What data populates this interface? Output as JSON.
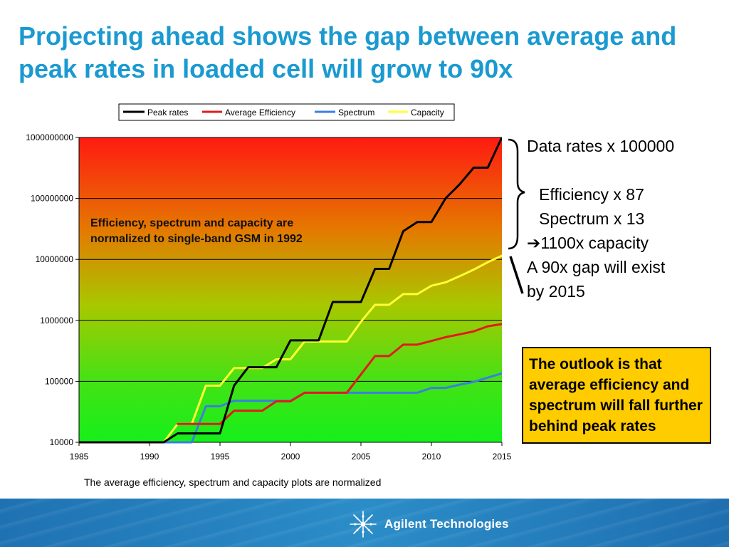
{
  "slide": {
    "title": "Projecting ahead shows the gap between average and peak rates in loaded cell will grow to 90x"
  },
  "side_notes": {
    "data_rates": "Data rates x 100000",
    "efficiency": "Efficiency x 87",
    "spectrum": "Spectrum x 13",
    "capacity": "1100x capacity",
    "gap_line1": "A 90x gap will exist",
    "gap_line2": "by 2015"
  },
  "outlook_box": {
    "text": "The outlook is that average efficiency and spectrum will fall further behind peak rates"
  },
  "footer": {
    "brand": "Agilent Technologies"
  },
  "colors": {
    "title": "#1a9ad0",
    "peak": "#000000",
    "average_efficiency": "#e31a1c",
    "spectrum": "#3a7fe0",
    "capacity": "#ffff33",
    "outlook_box": "#ffcc00",
    "footer": "#2580c0"
  },
  "chart_data": {
    "type": "line",
    "title": "",
    "xlabel": "",
    "ylabel": "",
    "y_scale": "log",
    "xlim": [
      1985,
      2015
    ],
    "ylim": [
      10000,
      1000000000
    ],
    "x_ticks": [
      1985,
      1990,
      1995,
      2000,
      2005,
      2010,
      2015
    ],
    "y_ticks": [
      10000,
      100000,
      1000000,
      10000000,
      100000000,
      1000000000
    ],
    "y_tick_labels": [
      "10000",
      "100000",
      "1000000",
      "10000000",
      "100000000",
      "1000000000"
    ],
    "grid": "horizontal",
    "legend_position": "top",
    "background": "vertical gradient from red at top to green at bottom",
    "annotation": "Efficiency, spectrum and capacity are normalized to single-band GSM in 1992",
    "caption": "The average efficiency, spectrum and capacity plots are normalized",
    "series": [
      {
        "name": "Peak rates",
        "color": "#000000",
        "points": [
          [
            1985,
            10000
          ],
          [
            1991,
            10000
          ],
          [
            1992,
            14000
          ],
          [
            1994,
            14000
          ],
          [
            1995,
            14000
          ],
          [
            1996,
            85000
          ],
          [
            1997,
            170000
          ],
          [
            1998,
            170000
          ],
          [
            1999,
            170000
          ],
          [
            2000,
            470000
          ],
          [
            2001,
            470000
          ],
          [
            2002,
            470000
          ],
          [
            2003,
            2000000
          ],
          [
            2004,
            2000000
          ],
          [
            2005,
            2000000
          ],
          [
            2006,
            7000000
          ],
          [
            2007,
            7000000
          ],
          [
            2008,
            29000000
          ],
          [
            2009,
            41000000
          ],
          [
            2010,
            41000000
          ],
          [
            2011,
            100000000
          ],
          [
            2012,
            170000000
          ],
          [
            2013,
            320000000
          ],
          [
            2014,
            320000000
          ],
          [
            2015,
            1000000000
          ]
        ]
      },
      {
        "name": "Average Efficiency",
        "color": "#e31a1c",
        "points": [
          [
            1992,
            20000
          ],
          [
            1993,
            20000
          ],
          [
            1994,
            20000
          ],
          [
            1995,
            20000
          ],
          [
            1996,
            33000
          ],
          [
            1997,
            33000
          ],
          [
            1998,
            33000
          ],
          [
            1999,
            47000
          ],
          [
            2000,
            47000
          ],
          [
            2001,
            65000
          ],
          [
            2002,
            65000
          ],
          [
            2003,
            65000
          ],
          [
            2004,
            65000
          ],
          [
            2005,
            130000
          ],
          [
            2006,
            260000
          ],
          [
            2007,
            260000
          ],
          [
            2008,
            400000
          ],
          [
            2009,
            400000
          ],
          [
            2010,
            460000
          ],
          [
            2011,
            530000
          ],
          [
            2012,
            590000
          ],
          [
            2013,
            660000
          ],
          [
            2014,
            800000
          ],
          [
            2015,
            870000
          ]
        ]
      },
      {
        "name": "Spectrum",
        "color": "#3a7fe0",
        "points": [
          [
            1985,
            10000
          ],
          [
            1991,
            10000
          ],
          [
            1993,
            10000
          ],
          [
            1994,
            39000
          ],
          [
            1995,
            39000
          ],
          [
            1996,
            48000
          ],
          [
            1997,
            48000
          ],
          [
            1998,
            48000
          ],
          [
            1999,
            48000
          ],
          [
            2000,
            48000
          ],
          [
            2001,
            65000
          ],
          [
            2002,
            65000
          ],
          [
            2003,
            65000
          ],
          [
            2004,
            65000
          ],
          [
            2005,
            65000
          ],
          [
            2006,
            65000
          ],
          [
            2007,
            65000
          ],
          [
            2008,
            65000
          ],
          [
            2009,
            65000
          ],
          [
            2010,
            78000
          ],
          [
            2011,
            78000
          ],
          [
            2012,
            88000
          ],
          [
            2013,
            98000
          ],
          [
            2014,
            115000
          ],
          [
            2015,
            135000
          ]
        ]
      },
      {
        "name": "Capacity",
        "color": "#ffff33",
        "points": [
          [
            1985,
            10000
          ],
          [
            1991,
            10000
          ],
          [
            1992,
            20000
          ],
          [
            1993,
            20000
          ],
          [
            1994,
            85000
          ],
          [
            1995,
            85000
          ],
          [
            1996,
            165000
          ],
          [
            1997,
            165000
          ],
          [
            1998,
            165000
          ],
          [
            1999,
            230000
          ],
          [
            2000,
            230000
          ],
          [
            2001,
            450000
          ],
          [
            2002,
            450000
          ],
          [
            2003,
            450000
          ],
          [
            2004,
            450000
          ],
          [
            2005,
            950000
          ],
          [
            2006,
            1800000
          ],
          [
            2007,
            1800000
          ],
          [
            2008,
            2700000
          ],
          [
            2009,
            2700000
          ],
          [
            2010,
            3700000
          ],
          [
            2011,
            4200000
          ],
          [
            2012,
            5300000
          ],
          [
            2013,
            6800000
          ],
          [
            2014,
            9000000
          ],
          [
            2015,
            11500000
          ]
        ]
      }
    ]
  }
}
